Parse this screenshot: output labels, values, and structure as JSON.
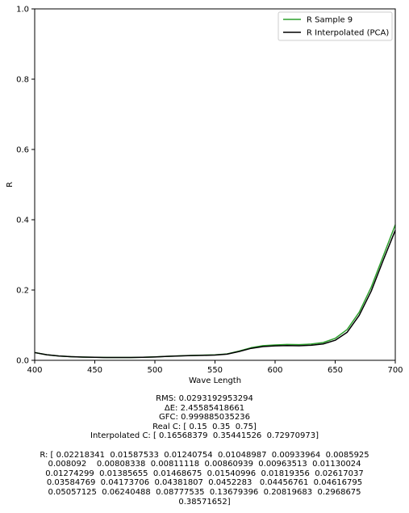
{
  "chart_data": {
    "type": "line",
    "xlabel": "Wave Length",
    "ylabel": "R",
    "xlim": [
      400,
      700
    ],
    "ylim": [
      0,
      1.0
    ],
    "x_ticks": [
      400,
      450,
      500,
      550,
      600,
      650,
      700
    ],
    "x_tick_labels": [
      "400",
      "450",
      "500",
      "550",
      "600",
      "650",
      "700"
    ],
    "y_ticks": [
      0,
      0.2,
      0.4,
      0.6,
      0.8,
      1.0
    ],
    "y_tick_labels": [
      "0.0",
      "0.2",
      "0.4",
      "0.6",
      "0.8",
      "1.0"
    ],
    "grid": false,
    "legend_position": "upper right",
    "x": [
      400,
      410,
      420,
      430,
      440,
      450,
      460,
      470,
      480,
      490,
      500,
      510,
      520,
      530,
      540,
      550,
      560,
      570,
      580,
      590,
      600,
      610,
      620,
      630,
      640,
      650,
      660,
      670,
      680,
      690,
      700
    ],
    "series": [
      {
        "name": "R Sample 9",
        "color": "#2ca02c",
        "values": [
          0.02218341,
          0.01587533,
          0.01240754,
          0.01048987,
          0.00933964,
          0.0085925,
          0.008092,
          0.00808338,
          0.00811118,
          0.00860939,
          0.00963513,
          0.01130024,
          0.01274299,
          0.01385655,
          0.01468675,
          0.01540996,
          0.01819356,
          0.02617037,
          0.03584769,
          0.04173706,
          0.04381807,
          0.0452283,
          0.04456761,
          0.04616795,
          0.05057125,
          0.06240488,
          0.08777535,
          0.13679396,
          0.20819683,
          0.2968675,
          0.38571652
        ]
      },
      {
        "name": "R Interpolated (PCA)",
        "color": "#000000",
        "values": [
          0.022,
          0.0158,
          0.0123,
          0.0104,
          0.0092,
          0.0085,
          0.008,
          0.008,
          0.008,
          0.0085,
          0.0095,
          0.0111,
          0.0124,
          0.0134,
          0.0141,
          0.0148,
          0.0175,
          0.025,
          0.034,
          0.039,
          0.041,
          0.042,
          0.0415,
          0.0428,
          0.0465,
          0.057,
          0.08,
          0.128,
          0.197,
          0.285,
          0.37
        ]
      }
    ]
  },
  "caption": {
    "rms": "RMS: 0.0293192953294",
    "delta_e": "ΔE: 2.45585418661",
    "gfc": "GFC: 0.999885035236",
    "real_c": "Real C: [ 0.15  0.35  0.75]",
    "interp_c": "Interpolated C: [ 0.16568379  0.35441526  0.72970973]",
    "r_lines": [
      "R: [ 0.02218341  0.01587533  0.01240754  0.01048987  0.00933964  0.0085925",
      "0.008092    0.00808338  0.00811118  0.00860939  0.00963513  0.01130024",
      "0.01274299  0.01385655  0.01468675  0.01540996  0.01819356  0.02617037",
      "0.03584769  0.04173706  0.04381807  0.0452283   0.04456761  0.04616795",
      "0.05057125  0.06240488  0.08777535  0.13679396  0.20819683  0.2968675",
      "0.38571652]"
    ]
  }
}
